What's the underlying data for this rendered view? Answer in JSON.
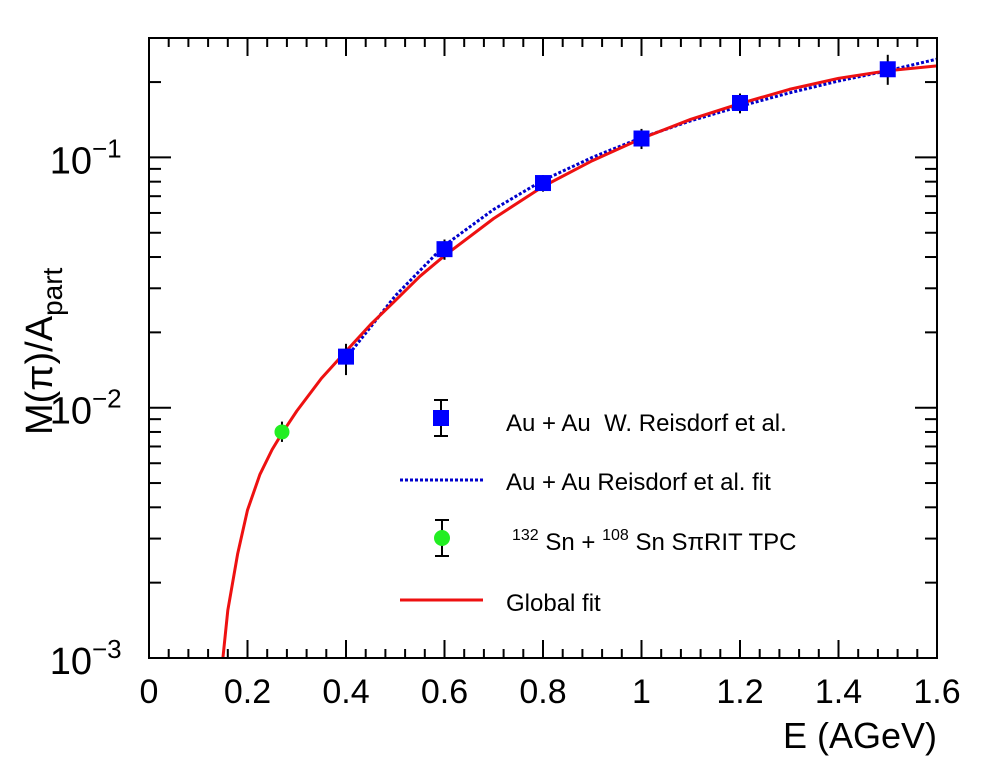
{
  "chart_data": {
    "type": "scatter",
    "xlabel": "E (AGeV)",
    "ylabel": {
      "main": "M(π)/A",
      "sub": "part"
    },
    "xlim": [
      0,
      1.6
    ],
    "ylim": [
      0.001,
      0.3
    ],
    "yscale": "log",
    "x_ticks": [
      {
        "value": 0,
        "label": "0"
      },
      {
        "value": 0.2,
        "label": "0.2"
      },
      {
        "value": 0.4,
        "label": "0.4"
      },
      {
        "value": 0.6,
        "label": "0.6"
      },
      {
        "value": 0.8,
        "label": "0.8"
      },
      {
        "value": 1.0,
        "label": "1"
      },
      {
        "value": 1.2,
        "label": "1.2"
      },
      {
        "value": 1.4,
        "label": "1.4"
      },
      {
        "value": 1.6,
        "label": "1.6"
      }
    ],
    "y_ticks": [
      {
        "value": 0.001,
        "base": "10",
        "exp": "−3"
      },
      {
        "value": 0.01,
        "base": "10",
        "exp": "−2"
      },
      {
        "value": 0.1,
        "base": "10",
        "exp": "−1"
      }
    ],
    "grid": false,
    "legend_position": "bottom-right",
    "series": [
      {
        "name": "Au + Au  W. Reisdorf et al.",
        "kind": "points",
        "marker": "square",
        "color": "#0000ff",
        "points": [
          {
            "x": 0.4,
            "y": 0.016,
            "ylo": 0.0135,
            "yhi": 0.018
          },
          {
            "x": 0.6,
            "y": 0.043,
            "ylo": 0.039,
            "yhi": 0.047
          },
          {
            "x": 0.8,
            "y": 0.079,
            "ylo": 0.073,
            "yhi": 0.085
          },
          {
            "x": 1.0,
            "y": 0.119,
            "ylo": 0.108,
            "yhi": 0.13
          },
          {
            "x": 1.2,
            "y": 0.165,
            "ylo": 0.15,
            "yhi": 0.18
          },
          {
            "x": 1.5,
            "y": 0.225,
            "ylo": 0.195,
            "yhi": 0.257
          }
        ]
      },
      {
        "name": "Au + Au Reisdorf et al. fit",
        "kind": "line",
        "style": "dotted",
        "color": "#0000cc",
        "points": [
          {
            "x": 0.4,
            "y": 0.0158
          },
          {
            "x": 0.5,
            "y": 0.028
          },
          {
            "x": 0.6,
            "y": 0.0445
          },
          {
            "x": 0.7,
            "y": 0.062
          },
          {
            "x": 0.8,
            "y": 0.081
          },
          {
            "x": 0.9,
            "y": 0.1
          },
          {
            "x": 1.0,
            "y": 0.12
          },
          {
            "x": 1.1,
            "y": 0.14
          },
          {
            "x": 1.2,
            "y": 0.16
          },
          {
            "x": 1.3,
            "y": 0.181
          },
          {
            "x": 1.4,
            "y": 0.202
          },
          {
            "x": 1.5,
            "y": 0.222
          },
          {
            "x": 1.6,
            "y": 0.247
          }
        ]
      },
      {
        "name": "132 Sn + 108 Sn SπRIT TPC",
        "label_parts": [
          "132",
          " Sn + ",
          "108",
          " Sn SπRIT TPC"
        ],
        "kind": "points",
        "marker": "circle",
        "color": "#22ee22",
        "points": [
          {
            "x": 0.27,
            "y": 0.008,
            "ylo": 0.0073,
            "yhi": 0.0088
          }
        ]
      },
      {
        "name": "Global fit",
        "kind": "line",
        "style": "solid",
        "color": "#ee1111",
        "points": [
          {
            "x": 0.15,
            "y": 0.001
          },
          {
            "x": 0.16,
            "y": 0.00155
          },
          {
            "x": 0.18,
            "y": 0.0026
          },
          {
            "x": 0.2,
            "y": 0.0039
          },
          {
            "x": 0.225,
            "y": 0.0054
          },
          {
            "x": 0.25,
            "y": 0.0068
          },
          {
            "x": 0.27,
            "y": 0.0079
          },
          {
            "x": 0.3,
            "y": 0.0097
          },
          {
            "x": 0.35,
            "y": 0.0131
          },
          {
            "x": 0.4,
            "y": 0.0168
          },
          {
            "x": 0.45,
            "y": 0.0215
          },
          {
            "x": 0.5,
            "y": 0.0268
          },
          {
            "x": 0.55,
            "y": 0.0335
          },
          {
            "x": 0.6,
            "y": 0.0405
          },
          {
            "x": 0.7,
            "y": 0.057
          },
          {
            "x": 0.8,
            "y": 0.0765
          },
          {
            "x": 0.9,
            "y": 0.097
          },
          {
            "x": 1.0,
            "y": 0.119
          },
          {
            "x": 1.1,
            "y": 0.142
          },
          {
            "x": 1.2,
            "y": 0.164
          },
          {
            "x": 1.3,
            "y": 0.187
          },
          {
            "x": 1.4,
            "y": 0.207
          },
          {
            "x": 1.5,
            "y": 0.222
          },
          {
            "x": 1.6,
            "y": 0.232
          }
        ]
      }
    ]
  }
}
